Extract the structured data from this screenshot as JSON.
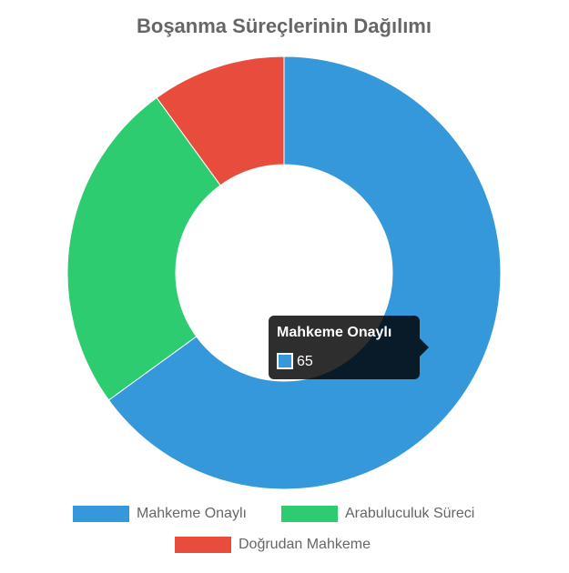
{
  "chart_data": {
    "type": "doughnut",
    "title": "Boşanma Süreçlerinin Dağılımı",
    "categories": [
      "Mahkeme Onaylı",
      "Arabuluculuk Süreci",
      "Doğrudan Mahkeme"
    ],
    "values": [
      65,
      25,
      10
    ],
    "colors": [
      "#3498db",
      "#2ecc71",
      "#e74c3c"
    ],
    "legend": "bottom"
  }
}
